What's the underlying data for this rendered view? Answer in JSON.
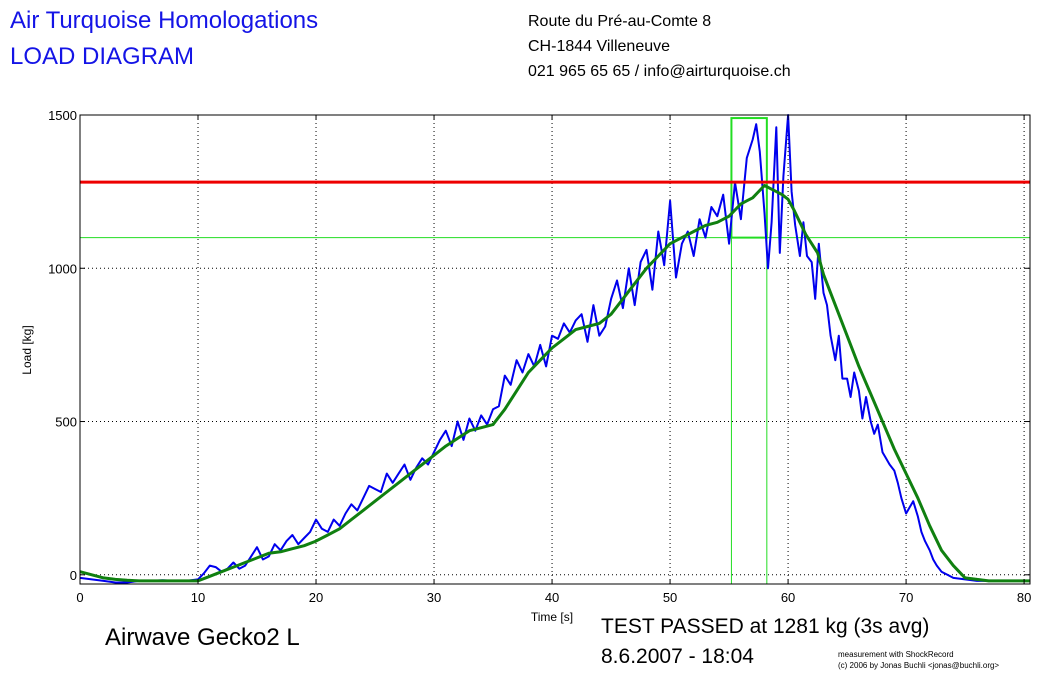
{
  "header": {
    "title_line1": "Air Turquoise Homologations",
    "title_line2": "LOAD DIAGRAM",
    "address_line1": "Route du Pré-au-Comte 8",
    "address_line2": "CH-1844 Villeneuve",
    "address_line3": "021 965 65 65 / info@airturquoise.ch"
  },
  "footer": {
    "glider": "Airwave Gecko2 L",
    "result": "TEST PASSED at 1281 kg (3s avg)",
    "date": "8.6.2007 - 18:04",
    "credit1": "measurement with ShockRecord",
    "credit2": "(c) 2006 by Jonas Buchli <jonas@buchli.org>"
  },
  "chart_data": {
    "type": "line",
    "xlabel": "Time [s]",
    "ylabel": "Load [kg]",
    "xlim": [
      0,
      80.5
    ],
    "ylim": [
      -30,
      1500
    ],
    "xticks": [
      0,
      10,
      20,
      30,
      40,
      50,
      60,
      70,
      80
    ],
    "yticks": [
      0,
      500,
      1000,
      1500
    ],
    "grid": true,
    "colors": {
      "raw": "#0000ee",
      "avg": "#108010",
      "limit": "#ee0000",
      "marker": "#22dd22"
    },
    "threshold_load": 1281,
    "reference_load": 1100,
    "peak_window": [
      55.2,
      58.2
    ],
    "peak_box_top": 1490,
    "series": [
      {
        "x": [
          0,
          1,
          2,
          3,
          4,
          5,
          6,
          7,
          8,
          9,
          10,
          10.5,
          11,
          11.5,
          12,
          12.5,
          13,
          13.5,
          14,
          14.5,
          15,
          15.5,
          16,
          16.5,
          17,
          17.5,
          18,
          18.5,
          19,
          19.5,
          20,
          20.5,
          21,
          21.5,
          22,
          22.5,
          23,
          23.5,
          24,
          24.5,
          25,
          25.5,
          26,
          26.5,
          27,
          27.5,
          28,
          28.5,
          29,
          29.5,
          30,
          30.5,
          31,
          31.5,
          32,
          32.5,
          33,
          33.5,
          34,
          34.5,
          35,
          35.5,
          36,
          36.5,
          37,
          37.5,
          38,
          38.5,
          39,
          39.5,
          40,
          40.5,
          41,
          41.5,
          42,
          42.5,
          43,
          43.5,
          44,
          44.5,
          45,
          45.5,
          46,
          46.5,
          47,
          47.5,
          48,
          48.5,
          49,
          49.5,
          50,
          50.5,
          51,
          51.5,
          52,
          52.5,
          53,
          53.5,
          54,
          54.5,
          55,
          55.5,
          56,
          56.5,
          57,
          57.3,
          57.6,
          58,
          58.3,
          58.6,
          59,
          59.3,
          59.6,
          60,
          60.3,
          60.6,
          61,
          61.3,
          61.6,
          62,
          62.3,
          62.6,
          63,
          63.3,
          63.6,
          64,
          64.3,
          64.6,
          65,
          65.3,
          65.6,
          66,
          66.3,
          66.6,
          67,
          67.3,
          67.6,
          68,
          68.3,
          68.6,
          69,
          69.3,
          69.6,
          70,
          70.3,
          70.6,
          71,
          71.3,
          71.6,
          72,
          72.3,
          72.6,
          73,
          73.5,
          74,
          75,
          76,
          78,
          80.5
        ],
        "y": [
          -10,
          -15,
          -20,
          -25,
          -25,
          -20,
          -20,
          -18,
          -20,
          -20,
          -15,
          5,
          30,
          25,
          10,
          20,
          40,
          20,
          30,
          60,
          90,
          50,
          60,
          100,
          80,
          110,
          130,
          100,
          120,
          140,
          180,
          150,
          140,
          180,
          160,
          200,
          230,
          210,
          250,
          290,
          280,
          270,
          330,
          300,
          330,
          360,
          310,
          350,
          380,
          360,
          400,
          440,
          470,
          420,
          500,
          440,
          510,
          470,
          520,
          490,
          540,
          550,
          650,
          620,
          700,
          660,
          720,
          680,
          750,
          680,
          780,
          770,
          820,
          790,
          830,
          850,
          760,
          880,
          780,
          810,
          900,
          960,
          870,
          1000,
          880,
          1020,
          1060,
          930,
          1120,
          1010,
          1220,
          970,
          1080,
          1120,
          1040,
          1160,
          1100,
          1200,
          1170,
          1240,
          1080,
          1280,
          1160,
          1360,
          1420,
          1470,
          1380,
          1180,
          1000,
          1150,
          1460,
          1050,
          1300,
          1500,
          1250,
          1140,
          1040,
          1150,
          1040,
          1020,
          900,
          1080,
          920,
          880,
          780,
          700,
          780,
          640,
          640,
          580,
          660,
          600,
          510,
          580,
          500,
          460,
          490,
          400,
          380,
          360,
          340,
          300,
          250,
          200,
          220,
          240,
          190,
          140,
          110,
          80,
          50,
          30,
          10,
          0,
          -10,
          -15,
          -20,
          -20,
          -20
        ]
      },
      {
        "x": [
          0,
          1,
          2,
          3,
          4,
          5,
          6,
          7,
          8,
          9,
          10,
          11,
          12,
          13,
          14,
          15,
          16,
          17,
          18,
          19,
          20,
          21,
          22,
          23,
          24,
          25,
          26,
          27,
          28,
          29,
          30,
          31,
          32,
          33,
          34,
          35,
          36,
          37,
          38,
          39,
          40,
          41,
          42,
          43,
          44,
          45,
          46,
          47,
          48,
          49,
          50,
          51,
          52,
          53,
          54,
          55,
          55.5,
          56,
          56.5,
          57,
          57.5,
          58,
          58.5,
          59,
          59.5,
          60,
          60.5,
          61,
          61.5,
          62,
          62.5,
          63,
          64,
          65,
          66,
          67,
          68,
          69,
          70,
          71,
          72,
          73,
          74,
          75,
          76,
          77,
          78,
          80.5
        ],
        "y": [
          10,
          0,
          -10,
          -15,
          -18,
          -20,
          -20,
          -20,
          -20,
          -20,
          -20,
          -5,
          10,
          25,
          40,
          55,
          70,
          75,
          85,
          95,
          110,
          130,
          150,
          180,
          210,
          240,
          270,
          300,
          330,
          360,
          390,
          420,
          445,
          470,
          480,
          490,
          540,
          600,
          660,
          700,
          740,
          770,
          800,
          810,
          820,
          850,
          900,
          950,
          1000,
          1040,
          1080,
          1100,
          1120,
          1140,
          1150,
          1170,
          1190,
          1210,
          1220,
          1230,
          1250,
          1270,
          1260,
          1250,
          1240,
          1225,
          1190,
          1150,
          1110,
          1080,
          1050,
          980,
          880,
          780,
          680,
          590,
          500,
          410,
          330,
          250,
          160,
          80,
          30,
          -10,
          -15,
          -20,
          -20,
          -20
        ]
      }
    ]
  }
}
